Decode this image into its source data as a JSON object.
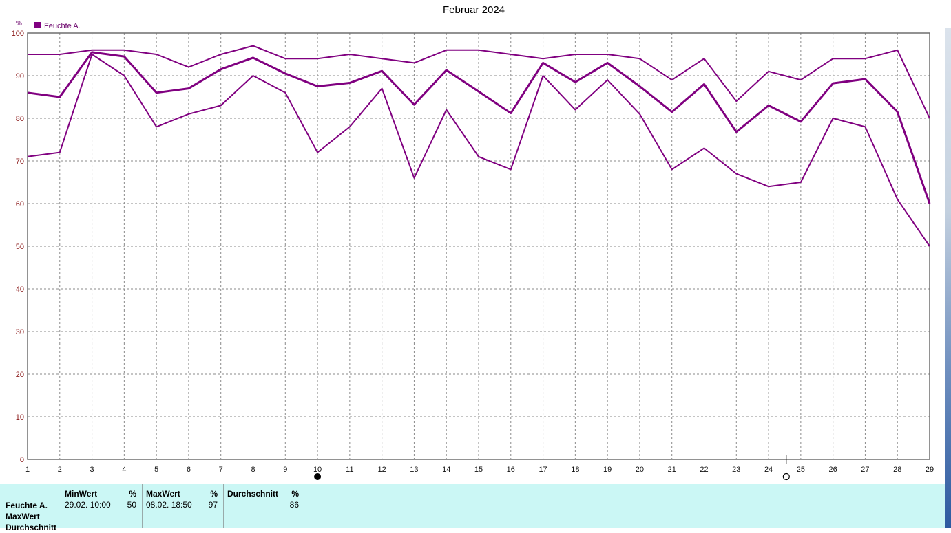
{
  "chart_data": {
    "type": "line",
    "title": "Februar 2024",
    "ylabel": "%",
    "legend": "top-left",
    "grid": true,
    "ylim": [
      0,
      100
    ],
    "yticks": [
      0,
      10,
      20,
      30,
      40,
      50,
      60,
      70,
      80,
      90,
      100
    ],
    "xlim": [
      1,
      29
    ],
    "x": [
      1,
      2,
      3,
      4,
      5,
      6,
      7,
      8,
      9,
      10,
      11,
      12,
      13,
      14,
      15,
      16,
      17,
      18,
      19,
      20,
      21,
      22,
      23,
      24,
      25,
      26,
      27,
      28,
      29
    ],
    "series": [
      {
        "name": "Feuchte A.",
        "role": "max",
        "values": [
          95,
          95,
          96,
          96,
          95,
          92,
          95,
          97,
          94,
          94,
          95,
          94,
          93,
          96,
          96,
          95,
          94,
          95,
          95,
          94,
          89,
          94,
          84,
          91,
          89,
          94,
          94,
          96,
          80
        ]
      },
      {
        "name": "Feuchte A.",
        "role": "avg",
        "values": [
          86,
          85,
          95.5,
          94.5,
          86,
          87,
          91.5,
          94.2,
          90.5,
          87.5,
          88.3,
          91.1,
          83.2,
          91.3,
          86.3,
          81.2,
          93,
          88.5,
          93,
          87.5,
          81.5,
          88,
          76.8,
          83,
          79.2,
          88.2,
          89.2,
          81.5,
          60
        ]
      },
      {
        "name": "Feuchte A.",
        "role": "min",
        "values": [
          71,
          72,
          95,
          90,
          78,
          81,
          83,
          90,
          86,
          72,
          78,
          87,
          66,
          82,
          71,
          68,
          90,
          82,
          89,
          81,
          68,
          73,
          67,
          64,
          65,
          80,
          78,
          61,
          50
        ]
      }
    ],
    "color": "#800080",
    "markers": [
      {
        "symbol": "full-moon",
        "x": 10
      },
      {
        "symbol": "new-moon",
        "x": 24.55
      }
    ]
  },
  "stats": {
    "row_labels": [
      "Feuchte A.",
      "MaxWert",
      "Durchschnitt"
    ],
    "columns": [
      {
        "header": "MinWert",
        "unit": "%",
        "date": "29.02.  10:00",
        "value": "50"
      },
      {
        "header": "MaxWert",
        "unit": "%",
        "date": "08.02.  18:50",
        "value": "97"
      },
      {
        "header": "Durchschnitt",
        "unit": "%",
        "date": "",
        "value": "86"
      }
    ]
  }
}
